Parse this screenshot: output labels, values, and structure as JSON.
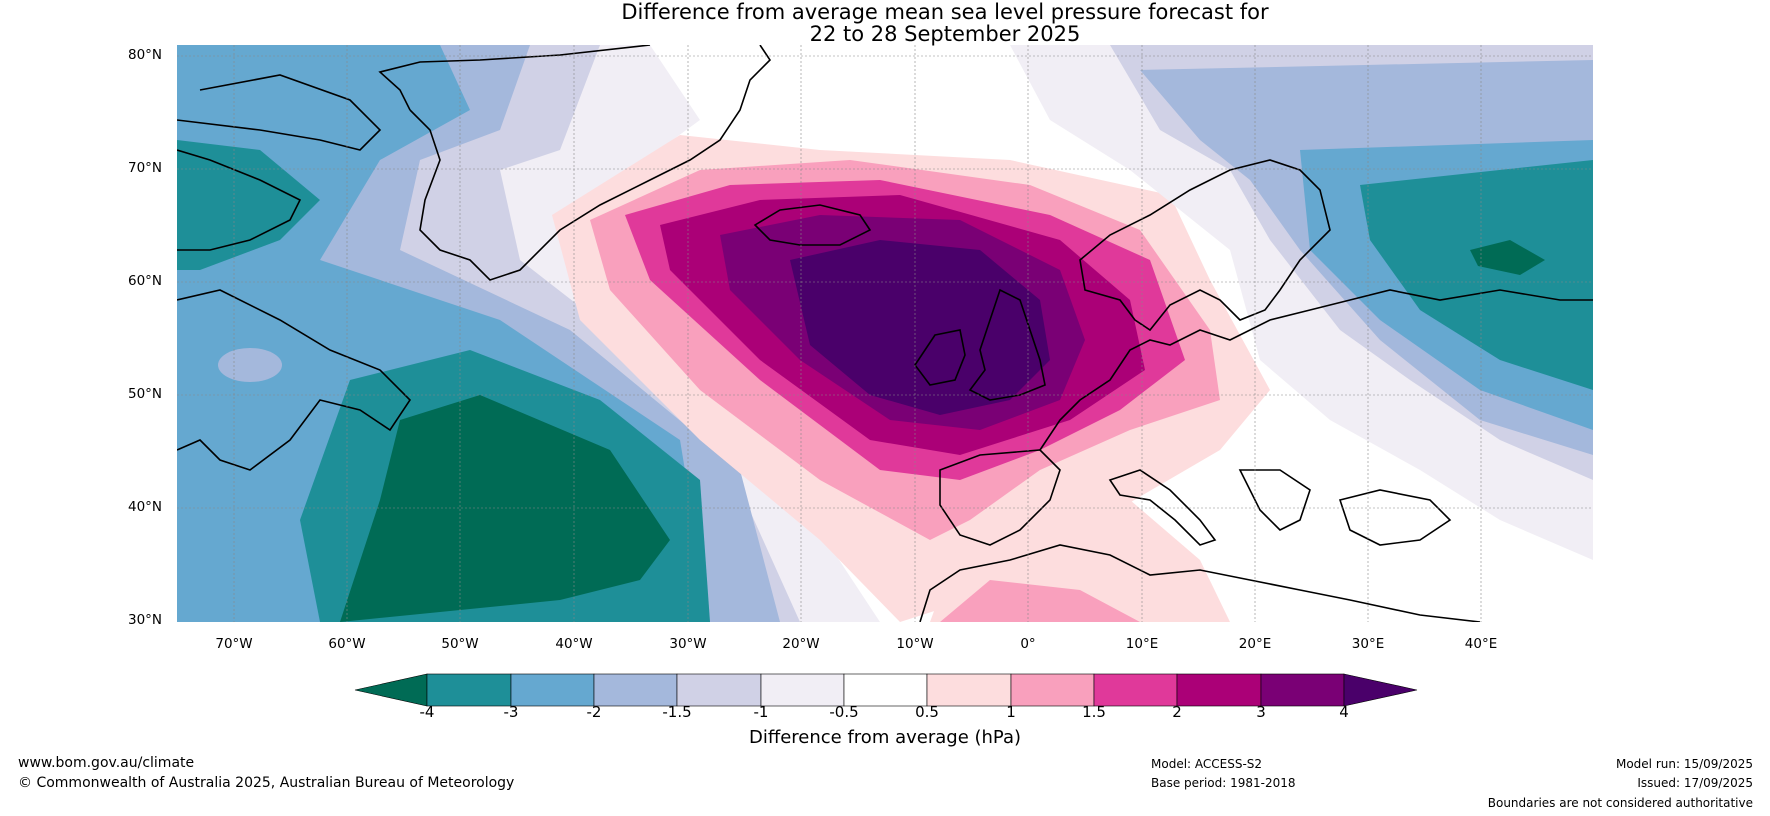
{
  "title": {
    "line1": "Difference from average mean sea level pressure forecast for",
    "line2": "22 to 28 September 2025"
  },
  "map": {
    "region": "North Atlantic and Europe",
    "lat_ticks": [
      "80°N",
      "70°N",
      "60°N",
      "50°N",
      "40°N",
      "30°N"
    ],
    "lon_ticks": [
      "70°W",
      "60°W",
      "50°W",
      "40°W",
      "30°W",
      "20°W",
      "10°W",
      "0°",
      "10°E",
      "20°E",
      "30°E",
      "40°E"
    ],
    "anomaly_centres": [
      {
        "type": "high",
        "location": "British Isles / North Sea",
        "value_class": ">4 hPa"
      },
      {
        "type": "low",
        "location": "North Atlantic south-east of Newfoundland",
        "value_class": "<-4 hPa"
      },
      {
        "type": "low",
        "location": "Western Russia",
        "value_class": "<-4 hPa"
      },
      {
        "type": "low",
        "location": "Baffin Bay / Canadian Arctic",
        "value_class": "-4 to -3 hPa"
      }
    ]
  },
  "colorbar": {
    "title": "Difference from average (hPa)",
    "ticks": [
      "-4",
      "-3",
      "-2",
      "-1.5",
      "-1",
      "-0.5",
      "0.5",
      "1",
      "1.5",
      "2",
      "3",
      "4"
    ],
    "colors": [
      "#006b55",
      "#1e8f98",
      "#65a8d0",
      "#a4b8dc",
      "#d0d1e6",
      "#f1eef5",
      "#ffffff",
      "#fdddde",
      "#f9a0bd",
      "#e0399a",
      "#ab0077",
      "#7a0075",
      "#4a006a"
    ]
  },
  "footer": {
    "website": "www.bom.gov.au/climate",
    "copyright": "© Commonwealth of Australia 2025, Australian Bureau of Meteorology",
    "model": "Model: ACCESS-S2",
    "base_period": "Base period: 1981-2018",
    "model_run": "Model run: 15/09/2025",
    "issued": "Issued: 17/09/2025",
    "disclaimer": "Boundaries are not considered authoritative"
  }
}
